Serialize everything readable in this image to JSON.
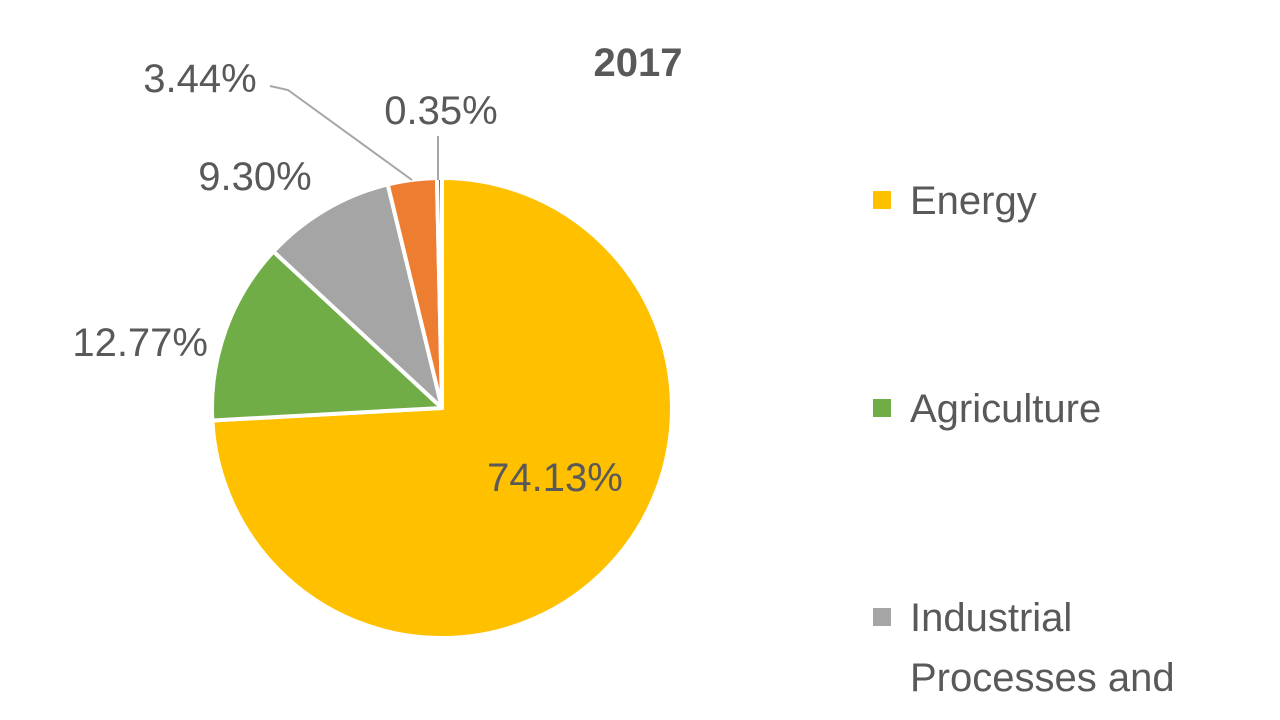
{
  "chart_data": {
    "type": "pie",
    "title": "2017",
    "categories": [
      "Energy",
      "Agriculture",
      "Industrial Processes and",
      "",
      ""
    ],
    "values": [
      74.13,
      12.77,
      9.3,
      3.44,
      0.35
    ],
    "labels": [
      "74.13%",
      "12.77%",
      "9.30%",
      "3.44%",
      "0.35%"
    ],
    "colors": [
      "#FFC000",
      "#70AD47",
      "#A5A5A5",
      "#ED7D31",
      "#4472C4"
    ],
    "legend": {
      "position": "right",
      "entries": [
        {
          "lines": [
            "Energy"
          ],
          "color": "#FFC000"
        },
        {
          "lines": [
            "Agriculture"
          ],
          "color": "#70AD47"
        },
        {
          "lines": [
            "Industrial",
            "Processes and"
          ],
          "color": "#A5A5A5"
        }
      ]
    }
  }
}
